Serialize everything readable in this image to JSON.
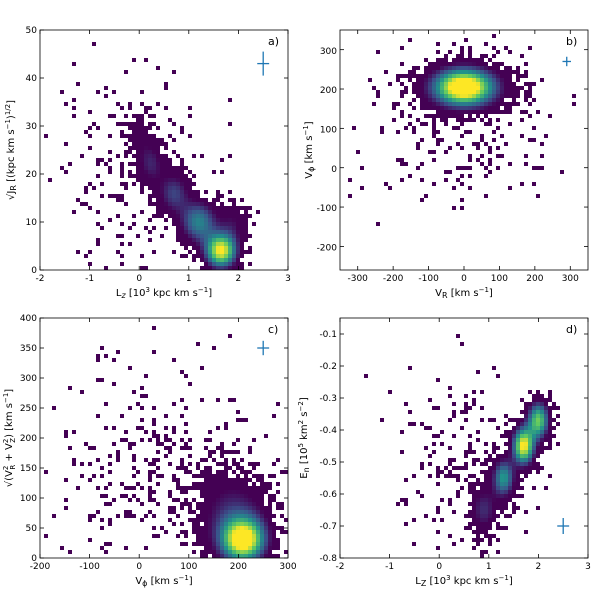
{
  "colormap": [
    "#440154",
    "#3b528b",
    "#21918c",
    "#5ec962",
    "#fde725"
  ],
  "error_cross_color": "#1f77b4",
  "chart_data": [
    {
      "type": "heatmap",
      "label": "a)",
      "xlabel": "L_z [10^3 kpc km s^-1]",
      "ylabel": "sqrt(J_R) [(kpc km s^-1)^1/2]",
      "xlim": [
        -2,
        3
      ],
      "ylim": [
        0,
        50
      ],
      "xticks": [
        -2,
        -1,
        0,
        1,
        2,
        3
      ],
      "yticks": [
        0,
        10,
        20,
        30,
        40,
        50
      ],
      "xtick_labels": [
        "-2",
        "-1",
        "0",
        "1",
        "2",
        "3"
      ],
      "ytick_labels": [
        "0",
        "10",
        "20",
        "30",
        "40",
        "50"
      ],
      "error_cross": {
        "x": 2.5,
        "y": 43,
        "dx": 0.12,
        "dy": 2.5
      },
      "density_components": [
        {
          "x": 1.65,
          "y": 4,
          "sx": 0.22,
          "sy": 2.5,
          "w": 1.0
        },
        {
          "x": 1.2,
          "y": 10,
          "sx": 0.25,
          "sy": 3.0,
          "w": 0.55
        },
        {
          "x": 0.7,
          "y": 16,
          "sx": 0.22,
          "sy": 3.0,
          "w": 0.35
        },
        {
          "x": 0.25,
          "y": 22,
          "sx": 0.18,
          "sy": 3.0,
          "w": 0.25
        },
        {
          "x": 0.0,
          "y": 28,
          "sx": 0.2,
          "sy": 4.0,
          "w": 0.15
        },
        {
          "x": 1.9,
          "y": 10,
          "sx": 0.2,
          "sy": 3.0,
          "w": 0.2
        },
        {
          "x": 0.0,
          "y": 20,
          "sx": 0.9,
          "sy": 12.0,
          "w": 0.03
        }
      ]
    },
    {
      "type": "heatmap",
      "label": "b)",
      "xlabel": "V_R [km s^-1]",
      "ylabel": "V_phi [km s^-1]",
      "xlim": [
        -350,
        350
      ],
      "ylim": [
        -260,
        350
      ],
      "xticks": [
        -300,
        -200,
        -100,
        0,
        100,
        200,
        300
      ],
      "yticks": [
        -200,
        -100,
        0,
        100,
        200,
        300
      ],
      "xtick_labels": [
        "-300",
        "-200",
        "-100",
        "0",
        "100",
        "200",
        "300"
      ],
      "ytick_labels": [
        "-200",
        "-100",
        "0",
        "100",
        "200",
        "300"
      ],
      "error_cross": {
        "x": 290,
        "y": 270,
        "dx": 12,
        "dy": 12
      },
      "density_components": [
        {
          "x": 0,
          "y": 205,
          "sx": 55,
          "sy": 30,
          "w": 1.0
        },
        {
          "x": 0,
          "y": 200,
          "sx": 100,
          "sy": 50,
          "w": 0.25
        },
        {
          "x": 0,
          "y": 20,
          "sx": 150,
          "sy": 60,
          "w": 0.04
        }
      ]
    },
    {
      "type": "heatmap",
      "label": "c)",
      "xlabel": "V_phi [km s^-1]",
      "ylabel": "sqrt(V_R^2 + V_Z^2) [km s^-1]",
      "xlim": [
        -200,
        300
      ],
      "ylim": [
        0,
        400
      ],
      "xticks": [
        -200,
        -100,
        0,
        100,
        200,
        300
      ],
      "yticks": [
        0,
        50,
        100,
        150,
        200,
        250,
        300,
        350,
        400
      ],
      "xtick_labels": [
        "-200",
        "-100",
        "0",
        "100",
        "200",
        "300"
      ],
      "ytick_labels": [
        "0",
        "50",
        "100",
        "150",
        "200",
        "250",
        "300",
        "350",
        "400"
      ],
      "error_cross": {
        "x": 250,
        "y": 350,
        "dx": 12,
        "dy": 12
      },
      "density_components": [
        {
          "x": 210,
          "y": 30,
          "sx": 30,
          "sy": 25,
          "w": 1.0
        },
        {
          "x": 190,
          "y": 70,
          "sx": 50,
          "sy": 50,
          "w": 0.3
        },
        {
          "x": 40,
          "y": 150,
          "sx": 110,
          "sy": 90,
          "w": 0.04
        }
      ]
    },
    {
      "type": "heatmap",
      "label": "d)",
      "xlabel": "L_Z [10^3 kpc km s^-1]",
      "ylabel": "E_n [10^5 km^2 s^-2]",
      "xlim": [
        -2,
        3
      ],
      "ylim": [
        -0.8,
        -0.05
      ],
      "xticks": [
        -2,
        -1,
        0,
        1,
        2,
        3
      ],
      "yticks": [
        -0.8,
        -0.7,
        -0.6,
        -0.5,
        -0.4,
        -0.3,
        -0.2,
        -0.1
      ],
      "xtick_labels": [
        "-2",
        "-1",
        "0",
        "1",
        "2",
        "3"
      ],
      "ytick_labels": [
        "-0.8",
        "-0.7",
        "-0.6",
        "-0.5",
        "-0.4",
        "-0.3",
        "-0.2",
        "-0.1"
      ],
      "error_cross": {
        "x": 2.5,
        "y": -0.7,
        "dx": 0.12,
        "dy": 0.025
      },
      "density_components": [
        {
          "x": 1.7,
          "y": -0.45,
          "sx": 0.15,
          "sy": 0.04,
          "w": 1.0
        },
        {
          "x": 2.0,
          "y": -0.37,
          "sx": 0.15,
          "sy": 0.04,
          "w": 0.8
        },
        {
          "x": 1.3,
          "y": -0.55,
          "sx": 0.15,
          "sy": 0.04,
          "w": 0.6
        },
        {
          "x": 0.9,
          "y": -0.65,
          "sx": 0.2,
          "sy": 0.05,
          "w": 0.3
        },
        {
          "x": 0.6,
          "y": -0.5,
          "sx": 0.8,
          "sy": 0.15,
          "w": 0.04
        }
      ]
    }
  ],
  "tick_labels": {
    "a_x": [
      "-2",
      "-1",
      "0",
      "1",
      "2",
      "3"
    ],
    "a_y": [
      "0",
      "10",
      "20",
      "30",
      "40",
      "50"
    ],
    "b_x": [
      "-300",
      "-200",
      "-100",
      "0",
      "100",
      "200",
      "300"
    ],
    "b_y": [
      "-200",
      "-100",
      "0",
      "100",
      "200",
      "300"
    ],
    "c_x": [
      "-200",
      "-100",
      "0",
      "100",
      "200",
      "300"
    ],
    "c_y": [
      "0",
      "50",
      "100",
      "150",
      "200",
      "250",
      "300",
      "350",
      "400"
    ],
    "d_x": [
      "-2",
      "-1",
      "0",
      "1",
      "2",
      "3"
    ],
    "d_y": [
      "-0.8",
      "-0.7",
      "-0.6",
      "-0.5",
      "-0.4",
      "-0.3",
      "-0.2",
      "-0.1"
    ]
  },
  "panel_labels": {
    "a": "a)",
    "b": "b)",
    "c": "c)",
    "d": "d)"
  }
}
